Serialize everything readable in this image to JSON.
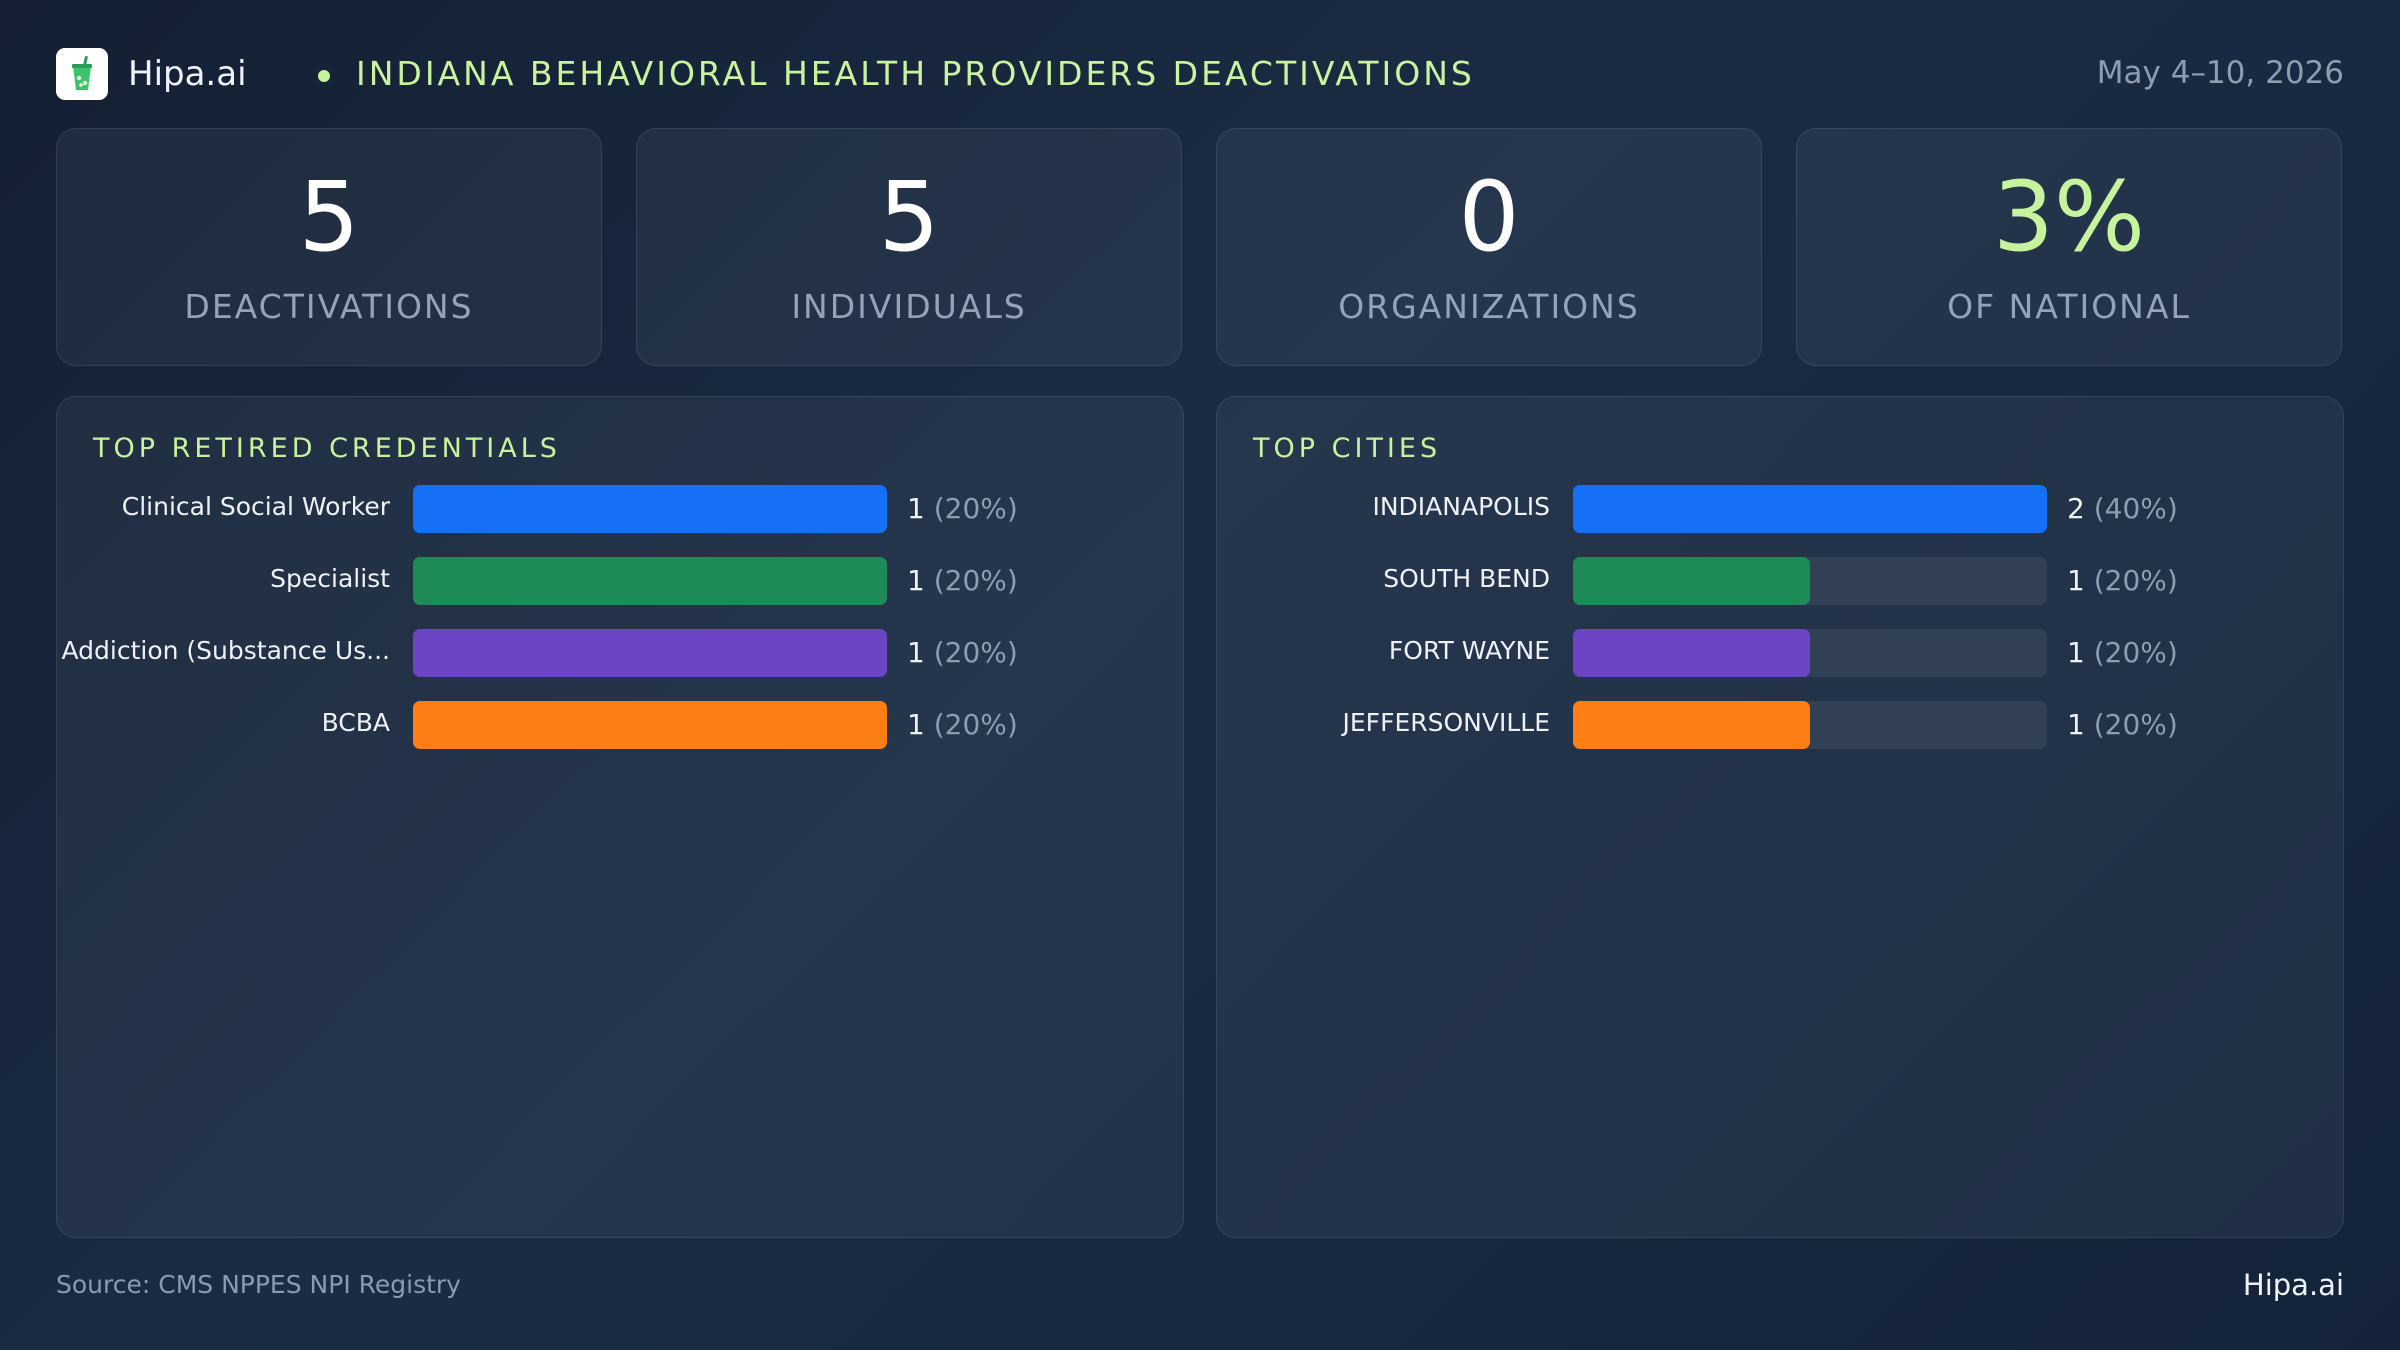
{
  "header": {
    "brand": "Hipa.ai",
    "title": "INDIANA BEHAVIORAL HEALTH PROVIDERS DEACTIVATIONS",
    "date": "May 4–10, 2026",
    "logo_icon": "tea-cup-icon"
  },
  "kpis": [
    {
      "value": "5",
      "label": "DEACTIVATIONS"
    },
    {
      "value": "5",
      "label": "INDIVIDUALS"
    },
    {
      "value": "0",
      "label": "ORGANIZATIONS"
    },
    {
      "value": "3%",
      "label": "OF NATIONAL",
      "color": "#c6f39b"
    }
  ],
  "chart_data": [
    {
      "type": "bar",
      "orientation": "horizontal",
      "title": "TOP RETIRED CREDENTIALS",
      "categories": [
        "Clinical Social Worker",
        "Specialist",
        "Addiction (Substance Us...",
        "BCBA"
      ],
      "values": [
        1,
        1,
        1,
        1
      ],
      "percent_labels": [
        "(20%)",
        "(20%)",
        "(20%)",
        "(20%)"
      ],
      "colors": [
        "#1570f5",
        "#1e8a56",
        "#6c45c4",
        "#fd7e14"
      ],
      "xlim": [
        0,
        1
      ]
    },
    {
      "type": "bar",
      "orientation": "horizontal",
      "title": "TOP CITIES",
      "categories": [
        "INDIANAPOLIS",
        "SOUTH BEND",
        "FORT WAYNE",
        "JEFFERSONVILLE"
      ],
      "values": [
        2,
        1,
        1,
        1
      ],
      "percent_labels": [
        "(40%)",
        "(20%)",
        "(20%)",
        "(20%)"
      ],
      "colors": [
        "#1570f5",
        "#1e8a56",
        "#6c45c4",
        "#fd7e14"
      ],
      "xlim": [
        0,
        2
      ]
    }
  ],
  "footer": {
    "source": "Source: CMS NPPES NPI Registry",
    "brand": "Hipa.ai"
  }
}
